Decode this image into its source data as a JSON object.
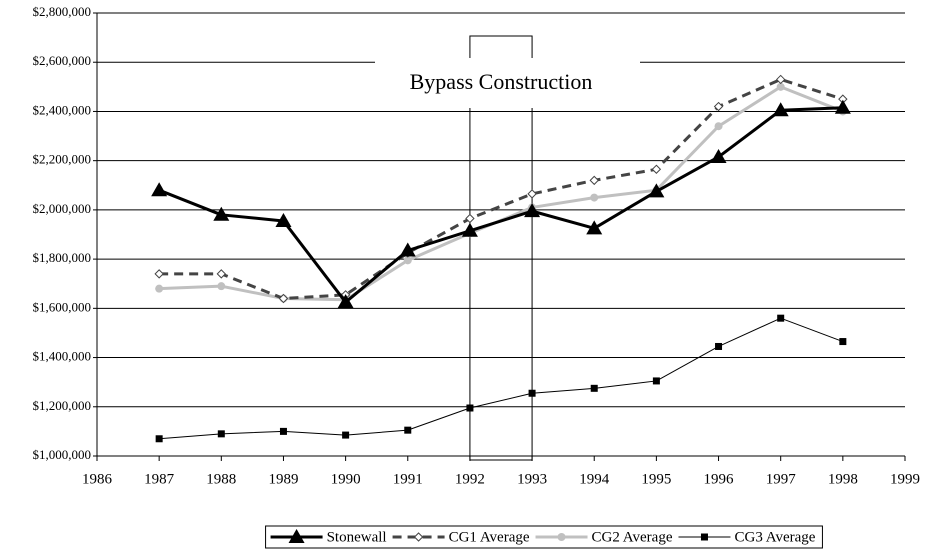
{
  "chart_data": {
    "type": "line",
    "x": [
      1987,
      1988,
      1989,
      1990,
      1991,
      1992,
      1993,
      1994,
      1995,
      1996,
      1997,
      1998
    ],
    "series": [
      {
        "name": "Stonewall",
        "color": "#000000",
        "width": 3,
        "dash": "none",
        "marker": "triangle",
        "values": [
          2080000,
          1980000,
          1955000,
          1625000,
          1835000,
          1915000,
          1995000,
          1925000,
          2075000,
          2215000,
          2405000,
          2415000
        ]
      },
      {
        "name": "CG1 Average",
        "color": "#444444",
        "width": 3,
        "dash": "9,6",
        "marker": "diamond",
        "values": [
          1740000,
          1740000,
          1640000,
          1655000,
          1825000,
          1965000,
          2065000,
          2120000,
          2165000,
          2420000,
          2530000,
          2450000
        ]
      },
      {
        "name": "CG2 Average",
        "color": "#c0c0c0",
        "width": 3,
        "dash": "none",
        "marker": "circle",
        "values": [
          1680000,
          1690000,
          1640000,
          1635000,
          1795000,
          1905000,
          2010000,
          2050000,
          2080000,
          2340000,
          2500000,
          2400000
        ]
      },
      {
        "name": "CG3 Average",
        "color": "#000000",
        "width": 1,
        "dash": "none",
        "marker": "square",
        "values": [
          1070000,
          1090000,
          1100000,
          1085000,
          1105000,
          1195000,
          1255000,
          1275000,
          1305000,
          1445000,
          1560000,
          1465000
        ]
      }
    ],
    "xlim": [
      1986,
      1999
    ],
    "xticks": [
      1986,
      1987,
      1988,
      1989,
      1990,
      1991,
      1992,
      1993,
      1994,
      1995,
      1996,
      1997,
      1998,
      1999
    ],
    "ylim": [
      1000000,
      2800000
    ],
    "yticks": [
      {
        "value": 1000000,
        "label": "$1,000,000"
      },
      {
        "value": 1200000,
        "label": "$1,200,000"
      },
      {
        "value": 1400000,
        "label": "$1,400,000"
      },
      {
        "value": 1600000,
        "label": "$1,600,000"
      },
      {
        "value": 1800000,
        "label": "$1,800,000"
      },
      {
        "value": 2000000,
        "label": "$2,000,000"
      },
      {
        "value": 2200000,
        "label": "$2,200,000"
      },
      {
        "value": 2400000,
        "label": "$2,400,000"
      },
      {
        "value": 2600000,
        "label": "$2,600,000"
      },
      {
        "value": 2800000,
        "label": "$2,800,000"
      }
    ],
    "grid": true,
    "legend": "bottom",
    "annotation": {
      "text": "Bypass Construction",
      "x": [
        1992,
        1993
      ]
    }
  }
}
